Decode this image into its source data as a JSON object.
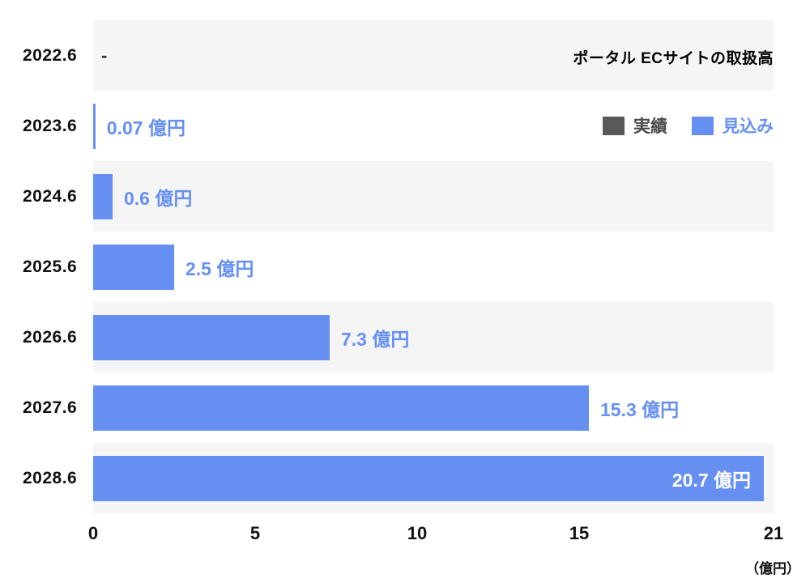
{
  "title": "ポータル ECサイトの取扱高",
  "legend": [
    {
      "label": "実績",
      "color": "#595959",
      "text_color": "#4a4a4a"
    },
    {
      "label": "見込み",
      "color": "#6590F2",
      "text_color": "#6590F2"
    }
  ],
  "axis_unit": "（億円）",
  "chart_data": {
    "type": "bar",
    "orientation": "horizontal",
    "title": "ポータル ECサイトの取扱高",
    "categories": [
      "2022.6",
      "2023.6",
      "2024.6",
      "2025.6",
      "2026.6",
      "2027.6",
      "2028.6"
    ],
    "values": [
      null,
      0.07,
      0.6,
      2.5,
      7.3,
      15.3,
      20.7
    ],
    "value_labels": [
      "-",
      "0.07 億円",
      "0.6 億円",
      "2.5 億円",
      "7.3 億円",
      "15.3 億円",
      "20.7 億円"
    ],
    "x_ticks": [
      0,
      5,
      10,
      15,
      21
    ],
    "xlim": [
      0,
      21
    ],
    "bar_color": "#6590F2",
    "value_label_color": "#6590F2",
    "stripe_color": "#f5f5f5",
    "legend_position": "top-right",
    "grid": false,
    "unit": "（億円）"
  }
}
